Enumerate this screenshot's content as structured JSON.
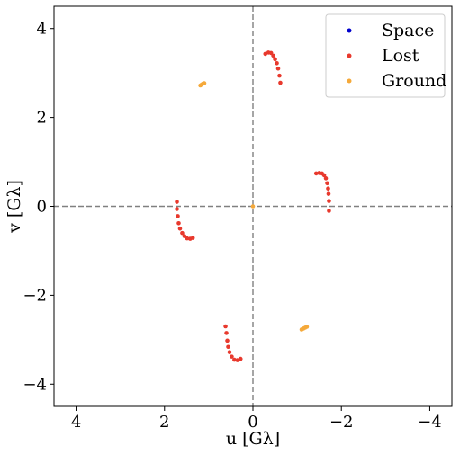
{
  "chart_data": {
    "type": "scatter",
    "title": "",
    "xlabel": "u [Gλ]",
    "ylabel": "v [Gλ]",
    "x_inverted": true,
    "xlim": [
      4.5,
      -4.5
    ],
    "ylim": [
      -4.5,
      4.5
    ],
    "xticks": [
      4,
      2,
      0,
      -2,
      -4
    ],
    "yticks": [
      4,
      2,
      0,
      -2,
      -4
    ],
    "xtick_labels": [
      "4",
      "2",
      "0",
      "−2",
      "−4"
    ],
    "ytick_labels": [
      "4",
      "2",
      "0",
      "−2",
      "−4"
    ],
    "grid": false,
    "reference_lines": {
      "x": 0,
      "y": 0,
      "style": "dashed",
      "color": "#808080"
    },
    "legend_position": "top-right",
    "series": [
      {
        "name": "Space",
        "color": "#0000cd",
        "points": []
      },
      {
        "name": "Lost",
        "color": "#e8392d",
        "points": [
          [
            -0.28,
            3.43
          ],
          [
            -0.35,
            3.46
          ],
          [
            -0.41,
            3.45
          ],
          [
            -0.46,
            3.39
          ],
          [
            -0.5,
            3.31
          ],
          [
            -0.54,
            3.22
          ],
          [
            -0.57,
            3.1
          ],
          [
            -0.6,
            2.94
          ],
          [
            -0.62,
            2.78
          ],
          [
            -1.43,
            0.74
          ],
          [
            -1.5,
            0.75
          ],
          [
            -1.56,
            0.74
          ],
          [
            -1.61,
            0.7
          ],
          [
            -1.65,
            0.63
          ],
          [
            -1.68,
            0.52
          ],
          [
            -1.7,
            0.4
          ],
          [
            -1.71,
            0.28
          ],
          [
            -1.72,
            0.12
          ],
          [
            -1.72,
            -0.1
          ],
          [
            1.72,
            0.1
          ],
          [
            1.72,
            -0.06
          ],
          [
            1.7,
            -0.22
          ],
          [
            1.68,
            -0.38
          ],
          [
            1.65,
            -0.5
          ],
          [
            1.6,
            -0.6
          ],
          [
            1.55,
            -0.67
          ],
          [
            1.49,
            -0.72
          ],
          [
            1.42,
            -0.73
          ],
          [
            1.36,
            -0.71
          ],
          [
            0.28,
            -3.43
          ],
          [
            0.35,
            -3.46
          ],
          [
            0.42,
            -3.45
          ],
          [
            0.48,
            -3.38
          ],
          [
            0.53,
            -3.28
          ],
          [
            0.56,
            -3.16
          ],
          [
            0.58,
            -3.02
          ],
          [
            0.6,
            -2.85
          ],
          [
            0.62,
            -2.7
          ]
        ]
      },
      {
        "name": "Ground",
        "color": "#f5a93a",
        "points": [
          [
            0.0,
            0.0
          ],
          [
            1.19,
            2.72
          ],
          [
            1.16,
            2.74
          ],
          [
            1.13,
            2.76
          ],
          [
            1.1,
            2.77
          ],
          [
            -1.1,
            -2.77
          ],
          [
            -1.14,
            -2.75
          ],
          [
            -1.18,
            -2.73
          ],
          [
            -1.22,
            -2.71
          ]
        ]
      }
    ]
  }
}
